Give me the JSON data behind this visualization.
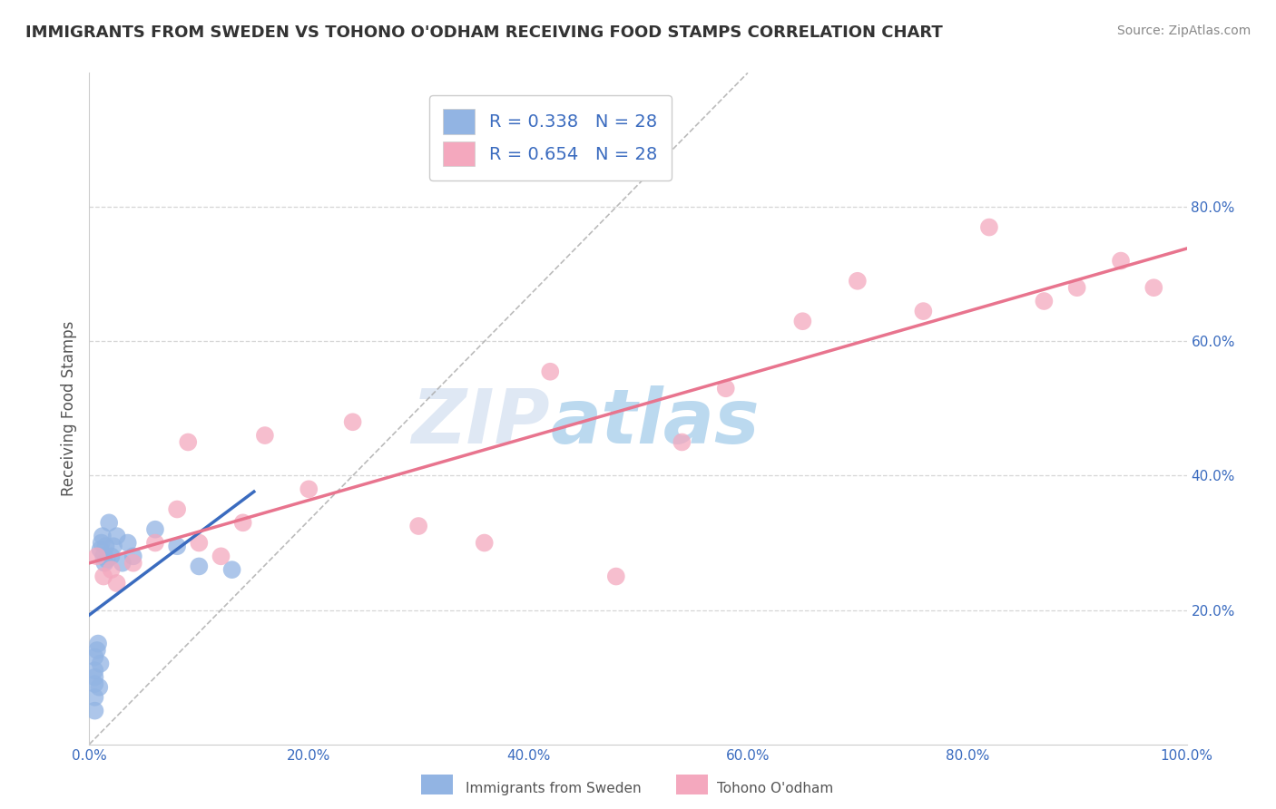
{
  "title": "IMMIGRANTS FROM SWEDEN VS TOHONO O'ODHAM RECEIVING FOOD STAMPS CORRELATION CHART",
  "source": "Source: ZipAtlas.com",
  "ylabel": "Receiving Food Stamps",
  "xlim": [
    0.0,
    1.0
  ],
  "ylim": [
    0.0,
    1.0
  ],
  "xticks": [
    0.0,
    0.2,
    0.4,
    0.6,
    0.8,
    1.0
  ],
  "yticks": [
    0.2,
    0.4,
    0.6,
    0.8
  ],
  "xtick_labels": [
    "0.0%",
    "20.0%",
    "40.0%",
    "60.0%",
    "80.0%",
    "100.0%"
  ],
  "ytick_labels": [
    "20.0%",
    "40.0%",
    "60.0%",
    "80.0%"
  ],
  "watermark_zip": "ZIP",
  "watermark_atlas": "atlas",
  "legend_entry1": "R = 0.338   N = 28",
  "legend_entry2": "R = 0.654   N = 28",
  "legend_label1": "Immigrants from Sweden",
  "legend_label2": "Tohono O'odham",
  "color_sweden": "#92b4e3",
  "color_tohono": "#f4a8be",
  "color_line_sweden": "#3a6bbf",
  "color_line_tohono": "#e8748e",
  "background_color": "#ffffff",
  "grid_color": "#cccccc",
  "title_color": "#333333",
  "axis_label_color": "#555555",
  "tick_color": "#3a6bbf",
  "sweden_x": [
    0.005,
    0.005,
    0.005,
    0.005,
    0.005,
    0.005,
    0.007,
    0.008,
    0.009,
    0.01,
    0.01,
    0.011,
    0.012,
    0.013,
    0.014,
    0.015,
    0.016,
    0.018,
    0.02,
    0.022,
    0.025,
    0.03,
    0.035,
    0.04,
    0.06,
    0.08,
    0.1,
    0.13
  ],
  "sweden_y": [
    0.05,
    0.07,
    0.09,
    0.1,
    0.11,
    0.13,
    0.14,
    0.15,
    0.085,
    0.12,
    0.29,
    0.3,
    0.31,
    0.28,
    0.27,
    0.295,
    0.275,
    0.33,
    0.28,
    0.295,
    0.31,
    0.27,
    0.3,
    0.28,
    0.32,
    0.295,
    0.265,
    0.26
  ],
  "tohono_x": [
    0.007,
    0.013,
    0.02,
    0.025,
    0.04,
    0.06,
    0.08,
    0.09,
    0.1,
    0.12,
    0.14,
    0.16,
    0.2,
    0.24,
    0.3,
    0.36,
    0.42,
    0.48,
    0.54,
    0.58,
    0.65,
    0.7,
    0.76,
    0.82,
    0.87,
    0.9,
    0.94,
    0.97
  ],
  "tohono_y": [
    0.28,
    0.25,
    0.26,
    0.24,
    0.27,
    0.3,
    0.35,
    0.45,
    0.3,
    0.28,
    0.33,
    0.46,
    0.38,
    0.48,
    0.325,
    0.3,
    0.555,
    0.25,
    0.45,
    0.53,
    0.63,
    0.69,
    0.645,
    0.77,
    0.66,
    0.68,
    0.72,
    0.68
  ]
}
